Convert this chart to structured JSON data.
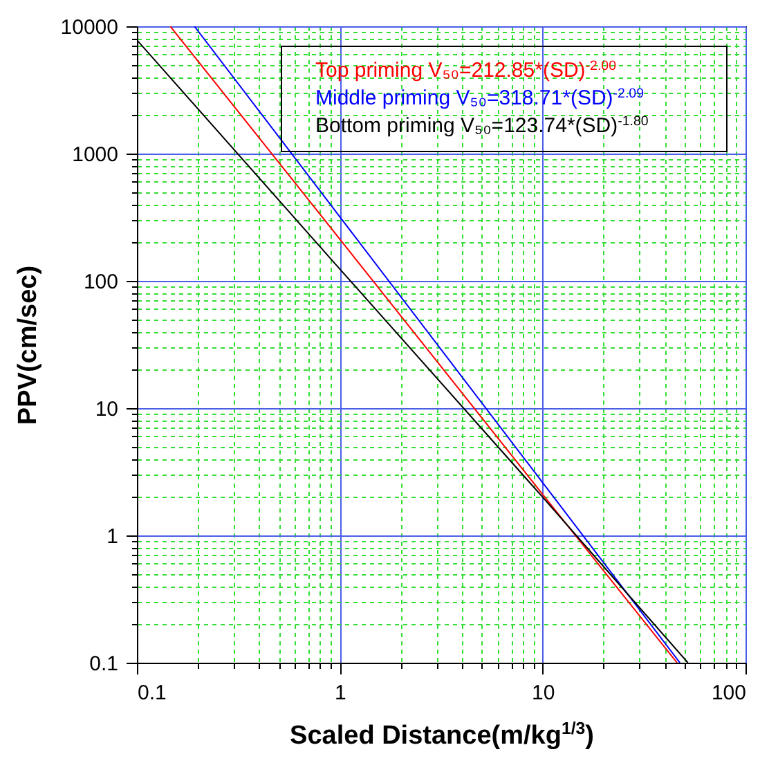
{
  "chart_data": {
    "type": "line",
    "xlabel": "Scaled Distance(m/kg$^{1/3}$)",
    "ylabel": "PPV(cm/sec)",
    "log": "xy",
    "grid": true,
    "legend": "top right",
    "xlim": [
      0.1,
      100
    ],
    "ylim": [
      0.1,
      10000
    ],
    "xticks": [
      0.1,
      {
        "value": 0.2,
        "label": null
      },
      {
        "value": 0.3,
        "label": null
      },
      {
        "value": 0.4,
        "label": null
      },
      {
        "value": 0.5,
        "label": null
      },
      {
        "value": 0.6,
        "label": null
      },
      {
        "value": 0.7,
        "label": null
      },
      {
        "value": 0.8,
        "label": null
      },
      {
        "value": 0.9,
        "label": null
      },
      1,
      {
        "value": 2,
        "label": null
      },
      {
        "value": 3,
        "label": null
      },
      {
        "value": 4,
        "label": null
      },
      {
        "value": 5,
        "label": null
      },
      {
        "value": 6,
        "label": null
      },
      {
        "value": 7,
        "label": null
      },
      {
        "value": 8,
        "label": null
      },
      {
        "value": 9,
        "label": null
      },
      10,
      {
        "value": 20,
        "label": null
      },
      {
        "value": 30,
        "label": null
      },
      {
        "value": 40,
        "label": null
      },
      {
        "value": 50,
        "label": null
      },
      {
        "value": 60,
        "label": null
      },
      {
        "value": 70,
        "label": null
      },
      {
        "value": 80,
        "label": null
      },
      {
        "value": 90,
        "label": null
      },
      100
    ],
    "yticks": [
      0.1,
      {
        "value": 0.2,
        "label": null
      },
      {
        "value": 0.3,
        "label": null
      },
      {
        "value": 0.4,
        "label": null
      },
      {
        "value": 0.5,
        "label": null
      },
      {
        "value": 0.6,
        "label": null
      },
      {
        "value": 0.7,
        "label": null
      },
      {
        "value": 0.8,
        "label": null
      },
      {
        "value": 0.9,
        "label": null
      },
      1,
      {
        "value": 2,
        "label": null
      },
      {
        "value": 3,
        "label": null
      },
      {
        "value": 4,
        "label": null
      },
      {
        "value": 5,
        "label": null
      },
      {
        "value": 6,
        "label": null
      },
      {
        "value": 7,
        "label": null
      },
      {
        "value": 8,
        "label": null
      },
      {
        "value": 9,
        "label": null
      },
      10,
      {
        "value": 20,
        "label": null
      },
      {
        "value": 30,
        "label": null
      },
      {
        "value": 40,
        "label": null
      },
      {
        "value": 50,
        "label": null
      },
      {
        "value": 60,
        "label": null
      },
      {
        "value": 70,
        "label": null
      },
      {
        "value": 80,
        "label": null
      },
      {
        "value": 90,
        "label": null
      },
      100,
      {
        "value": 200,
        "label": null
      },
      {
        "value": 300,
        "label": null
      },
      {
        "value": 400,
        "label": null
      },
      {
        "value": 500,
        "label": null
      },
      {
        "value": 600,
        "label": null
      },
      {
        "value": 700,
        "label": null
      },
      {
        "value": 800,
        "label": null
      },
      {
        "value": 900,
        "label": null
      },
      1000,
      {
        "value": 2000,
        "label": null
      },
      {
        "value": 3000,
        "label": null
      },
      {
        "value": 4000,
        "label": null
      },
      {
        "value": 5000,
        "label": null
      },
      {
        "value": 6000,
        "label": null
      },
      {
        "value": 7000,
        "label": null
      },
      {
        "value": 8000,
        "label": null
      },
      {
        "value": 9000,
        "label": null
      },
      10000
    ],
    "series": [
      {
        "name": "Top priming V₅₀=212.85*(SD)$^{-2.00}$",
        "color": "#ff0000",
        "x": [
          0.146,
          1,
          10,
          46
        ],
        "values": [
          10000,
          213,
          2.1,
          0.1
        ]
      },
      {
        "name": "Middle priming V₅₀=318.71*(SD)$^{-2.09}$",
        "color": "#0000ff",
        "x": [
          0.192,
          1,
          10,
          47.5
        ],
        "values": [
          10000,
          319,
          2.6,
          0.1
        ]
      },
      {
        "name": "Bottom priming V₅₀=123.74*(SD)$^{-1.80}$",
        "color": "#000000",
        "x": [
          0.1,
          1,
          10,
          52
        ],
        "values": [
          7800,
          124,
          2.0,
          0.1
        ]
      }
    ]
  }
}
